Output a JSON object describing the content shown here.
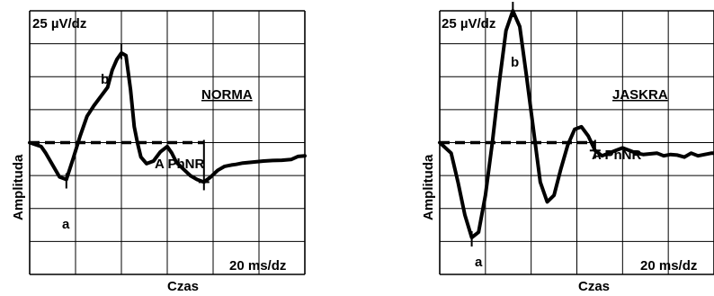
{
  "chart_data": [
    {
      "type": "line",
      "title": "NORMA",
      "scale_label": "25 µV/dz",
      "time_label": "20 ms/dz",
      "xlabel": "Czas",
      "ylabel": "Amplituda",
      "grid": true,
      "grid_divisions": {
        "x": 6,
        "y": 8
      },
      "xlim": [
        0,
        120
      ],
      "ylim": [
        -100,
        100
      ],
      "baseline": 0,
      "series": [
        {
          "x": [
            0,
            5,
            7,
            10,
            13,
            16,
            19,
            22,
            25,
            28,
            31,
            34,
            36,
            38,
            40,
            42,
            44,
            45.6,
            47,
            48.5,
            51,
            54,
            57,
            60,
            62,
            64,
            67,
            70,
            73,
            76,
            79,
            82,
            85,
            88,
            90,
            93,
            97,
            102,
            106,
            110,
            114,
            117,
            120
          ],
          "y": [
            0,
            -3,
            -8,
            -17,
            -26,
            -28,
            -12,
            5,
            20,
            28,
            35,
            42,
            55,
            63,
            68,
            66,
            40,
            12,
            0,
            -11,
            -16,
            -14,
            -7,
            -3,
            -8,
            -15,
            -20,
            -25,
            -28,
            -30,
            -26,
            -21,
            -18,
            -17,
            -16.5,
            -15.5,
            -14.8,
            -14,
            -13.6,
            -13.4,
            -12.8,
            -10.5,
            -10
          ]
        }
      ],
      "annotations": [
        {
          "label": "a",
          "x": 16,
          "y": -28
        },
        {
          "label": "b",
          "x": 40,
          "y": 68
        },
        {
          "label": "A PhNR",
          "x": 76,
          "y": -30
        }
      ]
    },
    {
      "type": "line",
      "title": "JASKRA",
      "scale_label": "25 µV/dz",
      "time_label": "20 ms/dz",
      "xlabel": "Czas",
      "ylabel": "Amplituda",
      "grid": true,
      "grid_divisions": {
        "x": 6,
        "y": 8
      },
      "xlim": [
        0,
        120
      ],
      "ylim": [
        -100,
        100
      ],
      "baseline": 0,
      "series": [
        {
          "x": [
            0,
            5,
            8,
            11,
            14,
            17,
            20,
            23,
            26,
            29,
            32,
            35,
            38,
            41,
            44,
            47,
            50,
            53,
            56,
            59,
            62,
            65,
            68,
            71,
            74,
            77,
            80,
            83,
            86,
            89,
            92,
            95,
            98,
            101,
            104,
            107,
            110,
            113,
            116,
            119,
            120
          ],
          "y": [
            0,
            -8,
            -30,
            -55,
            -72,
            -68,
            -40,
            0,
            45,
            85,
            100,
            88,
            50,
            10,
            -30,
            -45,
            -40,
            -20,
            -2,
            10,
            12,
            5,
            -6,
            -10,
            -8,
            -6,
            -4,
            -6,
            -8,
            -9,
            -8.5,
            -8,
            -10,
            -9,
            -9.5,
            -11,
            -8,
            -10,
            -9,
            -8,
            -8
          ]
        }
      ],
      "annotations": [
        {
          "label": "a",
          "x": 14,
          "y": -72
        },
        {
          "label": "b",
          "x": 32,
          "y": 100
        },
        {
          "label": "A PhNR",
          "x": 68,
          "y": -6
        }
      ]
    }
  ]
}
